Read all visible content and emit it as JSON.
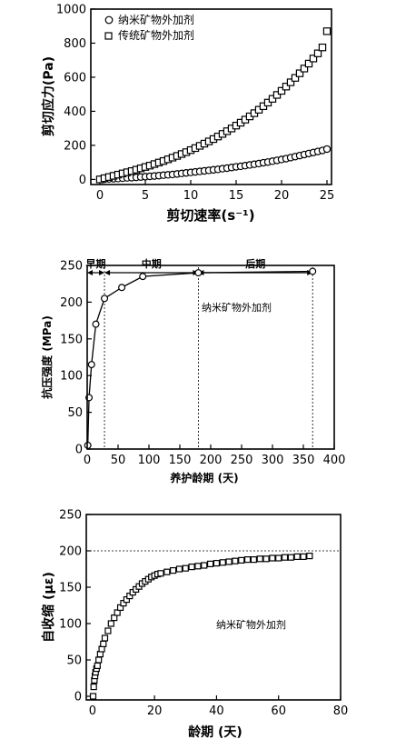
{
  "chart_data": [
    {
      "type": "scatter",
      "xlabel": "剪切速率(s⁻¹)",
      "ylabel": "剪切应力(Pa)",
      "xlim": [
        -1,
        25.5
      ],
      "ylim": [
        -30,
        1000
      ],
      "xticks": [
        0,
        5,
        10,
        15,
        20,
        25
      ],
      "yticks": [
        0,
        200,
        400,
        600,
        800,
        1000
      ],
      "legend": "top-left",
      "series": [
        {
          "name": "纳米矿物外加剂",
          "marker": "circle",
          "x": [
            0,
            0.5,
            1,
            1.5,
            2,
            2.5,
            3,
            3.5,
            4,
            4.5,
            5,
            5.5,
            6,
            6.5,
            7,
            7.5,
            8,
            8.5,
            9,
            9.5,
            10,
            10.5,
            11,
            11.5,
            12,
            12.5,
            13,
            13.5,
            14,
            14.5,
            15,
            15.5,
            16,
            16.5,
            17,
            17.5,
            18,
            18.5,
            19,
            19.5,
            20,
            20.5,
            21,
            21.5,
            22,
            22.5,
            23,
            23.5,
            24,
            24.5,
            25
          ],
          "y": [
            0,
            1,
            3,
            4,
            5,
            7,
            9,
            10,
            12,
            14,
            16,
            18,
            20,
            22,
            25,
            27,
            29,
            32,
            35,
            38,
            41,
            44,
            47,
            50,
            53,
            56,
            59,
            63,
            66,
            70,
            74,
            77,
            81,
            85,
            89,
            93,
            98,
            102,
            107,
            112,
            117,
            122,
            128,
            134,
            140,
            146,
            152,
            158,
            164,
            170,
            178
          ]
        },
        {
          "name": "传统矿物外加剂",
          "marker": "square",
          "x": [
            0,
            0.5,
            1,
            1.5,
            2,
            2.5,
            3,
            3.5,
            4,
            4.5,
            5,
            5.5,
            6,
            6.5,
            7,
            7.5,
            8,
            8.5,
            9,
            9.5,
            10,
            10.5,
            11,
            11.5,
            12,
            12.5,
            13,
            13.5,
            14,
            14.5,
            15,
            15.5,
            16,
            16.5,
            17,
            17.5,
            18,
            18.5,
            19,
            19.5,
            20,
            20.5,
            21,
            21.5,
            22,
            22.5,
            23,
            23.5,
            24,
            24.5,
            25
          ],
          "y": [
            0,
            7,
            14,
            21,
            28,
            35,
            42,
            49,
            57,
            65,
            73,
            81,
            90,
            99,
            108,
            118,
            128,
            138,
            149,
            160,
            172,
            184,
            197,
            210,
            223,
            237,
            252,
            267,
            283,
            299,
            316,
            333,
            351,
            370,
            389,
            409,
            430,
            451,
            473,
            496,
            520,
            545,
            570,
            596,
            623,
            651,
            680,
            710,
            740,
            775,
            870
          ]
        }
      ]
    },
    {
      "type": "line",
      "xlabel": "养护龄期 (天)",
      "ylabel": "抗压强度 (MPa)",
      "xlim": [
        0,
        400
      ],
      "ylim": [
        0,
        250
      ],
      "xticks": [
        0,
        50,
        100,
        150,
        200,
        250,
        300,
        350,
        400
      ],
      "yticks": [
        0,
        50,
        100,
        150,
        200,
        250
      ],
      "annotation": "纳米矿物外加剂",
      "phases": [
        {
          "label": "早期",
          "from": 0,
          "to": 28
        },
        {
          "label": "中期",
          "from": 28,
          "to": 180
        },
        {
          "label": "后期",
          "from": 180,
          "to": 365
        }
      ],
      "series": [
        {
          "marker": "circle",
          "x": [
            1,
            3,
            7,
            14,
            28,
            56,
            90,
            180,
            365
          ],
          "y": [
            5,
            70,
            115,
            170,
            205,
            220,
            235,
            240,
            242
          ]
        }
      ]
    },
    {
      "type": "scatter",
      "xlabel": "龄期 (天)",
      "ylabel": "自收缩 (με)",
      "xlim": [
        -2,
        80
      ],
      "ylim": [
        -5,
        250
      ],
      "xticks": [
        0,
        20,
        40,
        60,
        80
      ],
      "yticks": [
        0,
        50,
        100,
        150,
        200,
        250
      ],
      "reference_line": 200,
      "annotation": "纳米矿物外加剂",
      "series": [
        {
          "marker": "square",
          "x": [
            0.2,
            0.4,
            0.6,
            0.8,
            1,
            1.3,
            1.6,
            2,
            2.5,
            3,
            3.5,
            4,
            5,
            6,
            7,
            8,
            9,
            10,
            11,
            12,
            13,
            14,
            15,
            16,
            17,
            18,
            19,
            20,
            21,
            22,
            24,
            26,
            28,
            30,
            32,
            34,
            36,
            38,
            40,
            42,
            44,
            46,
            48,
            50,
            52,
            54,
            56,
            58,
            60,
            62,
            64,
            66,
            68,
            70
          ],
          "y": [
            0,
            13,
            22,
            28,
            33,
            38,
            42,
            50,
            58,
            65,
            72,
            80,
            90,
            100,
            108,
            115,
            122,
            128,
            133,
            138,
            143,
            147,
            151,
            155,
            158,
            161,
            164,
            166,
            168,
            169,
            171,
            173,
            175,
            176,
            178,
            179,
            180,
            182,
            183,
            184,
            185,
            186,
            187,
            188,
            188,
            189,
            189,
            190,
            190,
            191,
            191,
            192,
            192,
            193
          ]
        }
      ]
    }
  ]
}
